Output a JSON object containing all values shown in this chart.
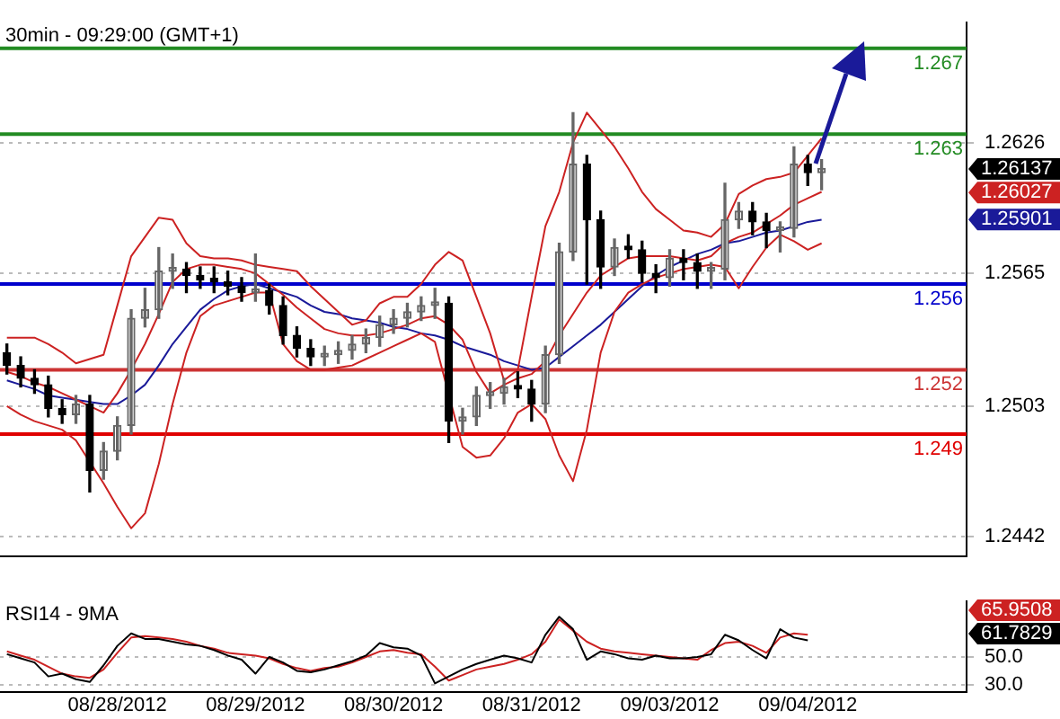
{
  "chart_data": [
    {
      "type": "candlestick",
      "title": "30min - 09:29:00 (GMT+1)",
      "colors": [
        "#000000",
        "#000000",
        "#000000",
        "#000000",
        "#000000",
        "#666666",
        "#000000",
        "#666666",
        "#666666",
        "#666666",
        "#666666",
        "#666666",
        "#666666",
        "#000000",
        "#000000",
        "#000000",
        "#000000",
        "#000000",
        "#666666",
        "#000000",
        "#000000",
        "#000000",
        "#000000",
        "#666666",
        "#666666",
        "#666666",
        "#666666",
        "#666666",
        "#666666",
        "#666666",
        "#666666",
        "#666666",
        "#000000",
        "#666666",
        "#666666",
        "#666666",
        "#666666",
        "#000000",
        "#000000",
        "#666666",
        "#666666",
        "#666666",
        "#000000",
        "#000000",
        "#666666",
        "#000000",
        "#000000",
        "#000000",
        "#666666",
        "#000000",
        "#000000",
        "#666666",
        "#666666",
        "#666666",
        "#000000",
        "#000000",
        "#666666",
        "#666666",
        "#000000",
        "#666666",
        null,
        null,
        null,
        null,
        null,
        null,
        null,
        null,
        null,
        null
      ],
      "legend": false,
      "grid": "y",
      "tick_labels": "y",
      "marker": "none",
      "categories": [
        null,
        null,
        null,
        null,
        null,
        null,
        null,
        null,
        null,
        null,
        null,
        null,
        null,
        null,
        null,
        null,
        null,
        null,
        null,
        null,
        null,
        null,
        null,
        null,
        null,
        null,
        null,
        null,
        null,
        null,
        null,
        null,
        null,
        null,
        null,
        null,
        null,
        null,
        null,
        null,
        null,
        null,
        null,
        null,
        null,
        null,
        null,
        null,
        null,
        null,
        null,
        null,
        null,
        null,
        null,
        null,
        null,
        null,
        null,
        null,
        null,
        null,
        null,
        null,
        null,
        null,
        null,
        null,
        null,
        null
      ],
      "ylim": [
        1.2433,
        1.2682
      ],
      "yticks": [
        1.2442,
        1.2503,
        1.2565,
        1.2626
      ],
      "ohlc": [
        [
          1.2528,
          1.2532,
          1.2518,
          1.2522
        ],
        [
          1.2522,
          1.2526,
          1.2512,
          1.2516
        ],
        [
          1.2516,
          1.252,
          1.2509,
          1.2513
        ],
        [
          1.2513,
          1.2517,
          1.2498,
          1.2502
        ],
        [
          1.2502,
          1.2506,
          1.2495,
          1.2499
        ],
        [
          1.2499,
          1.2508,
          1.2495,
          1.2504
        ],
        [
          1.2504,
          1.2508,
          1.2463,
          1.2473
        ],
        [
          1.2473,
          1.2486,
          1.2469,
          1.2482
        ],
        [
          1.2482,
          1.2498,
          1.2478,
          1.2494
        ],
        [
          1.2494,
          1.2548,
          1.249,
          1.2544
        ],
        [
          1.2544,
          1.2558,
          1.254,
          1.2548
        ],
        [
          1.2548,
          1.2577,
          1.2544,
          1.2566
        ],
        [
          1.2566,
          1.2574,
          1.2558,
          1.2567
        ],
        [
          1.2567,
          1.257,
          1.2556,
          1.2564
        ],
        [
          1.2564,
          1.2568,
          1.2558,
          1.2562
        ],
        [
          1.2562,
          1.2568,
          1.2556,
          1.2561
        ],
        [
          1.2561,
          1.2566,
          1.2555,
          1.2559
        ],
        [
          1.2559,
          1.2563,
          1.2552,
          1.2556
        ],
        [
          1.2556,
          1.2574,
          1.2552,
          1.2557
        ],
        [
          1.2557,
          1.256,
          1.2546,
          1.255
        ],
        [
          1.255,
          1.2554,
          1.2532,
          1.2536
        ],
        [
          1.2536,
          1.254,
          1.2526,
          1.253
        ],
        [
          1.253,
          1.2534,
          1.2522,
          1.2526
        ],
        [
          1.2526,
          1.2531,
          1.2522,
          1.2527
        ],
        [
          1.2527,
          1.2533,
          1.2523,
          1.2529
        ],
        [
          1.2529,
          1.2536,
          1.2525,
          1.2532
        ],
        [
          1.2532,
          1.2539,
          1.2528,
          1.2535
        ],
        [
          1.2535,
          1.2545,
          1.2531,
          1.2541
        ],
        [
          1.2541,
          1.2548,
          1.2537,
          1.2544
        ],
        [
          1.2544,
          1.2551,
          1.254,
          1.2547
        ],
        [
          1.2547,
          1.2554,
          1.2543,
          1.255
        ],
        [
          1.255,
          1.2558,
          1.2544,
          1.2551
        ],
        [
          1.2551,
          1.2554,
          1.2486,
          1.2496
        ],
        [
          1.2496,
          1.2502,
          1.249,
          1.2498
        ],
        [
          1.2498,
          1.2512,
          1.2494,
          1.2508
        ],
        [
          1.2508,
          1.2514,
          1.2502,
          1.2509
        ],
        [
          1.2509,
          1.2516,
          1.2504,
          1.2512
        ],
        [
          1.2512,
          1.2519,
          1.2507,
          1.2511
        ],
        [
          1.2511,
          1.2515,
          1.2496,
          1.2504
        ],
        [
          1.2504,
          1.2531,
          1.25,
          1.2527
        ],
        [
          1.2527,
          1.2579,
          1.2523,
          1.2575
        ],
        [
          1.2575,
          1.264,
          1.2571,
          1.2616
        ],
        [
          1.2616,
          1.262,
          1.256,
          1.259
        ],
        [
          1.259,
          1.2594,
          1.2558,
          1.2568
        ],
        [
          1.2568,
          1.2581,
          1.2564,
          1.2577
        ],
        [
          1.2577,
          1.2583,
          1.2572,
          1.2576
        ],
        [
          1.2576,
          1.258,
          1.2561,
          1.2565
        ],
        [
          1.2565,
          1.2569,
          1.2556,
          1.2563
        ],
        [
          1.2563,
          1.2576,
          1.2559,
          1.2572
        ],
        [
          1.2572,
          1.2576,
          1.2562,
          1.257
        ],
        [
          1.257,
          1.2574,
          1.2558,
          1.2566
        ],
        [
          1.2566,
          1.257,
          1.2558,
          1.2567
        ],
        [
          1.2567,
          1.2607,
          1.2562,
          1.259
        ],
        [
          1.259,
          1.2598,
          1.2586,
          1.2594
        ],
        [
          1.2594,
          1.2598,
          1.2583,
          1.2589
        ],
        [
          1.2589,
          1.2593,
          1.2577,
          1.2585
        ],
        [
          1.2585,
          1.2589,
          1.2575,
          1.2586
        ],
        [
          1.2586,
          1.2624,
          1.2582,
          1.2616
        ],
        [
          1.2616,
          1.262,
          1.2606,
          1.2612
        ],
        [
          1.2612,
          1.2618,
          1.2604,
          1.2614
        ],
        null,
        null,
        null,
        null,
        null,
        null,
        null,
        null,
        null,
        null
      ],
      "series": [
        {
          "type": "line",
          "color": "#cc2222",
          "values": [
            1.2535,
            1.2535,
            1.2535,
            1.2532,
            1.2528,
            1.2523,
            1.2525,
            1.2527,
            1.255,
            1.2573,
            1.2582,
            1.2591,
            1.259,
            1.2579,
            1.2573,
            1.2572,
            1.2572,
            1.2571,
            1.2569,
            1.2568,
            1.2567,
            1.2566,
            1.2559,
            1.2553,
            1.2547,
            1.2541,
            1.2543,
            1.2551,
            1.2554,
            1.2554,
            1.256,
            1.2569,
            1.2575,
            1.2571,
            1.2554,
            1.2537,
            1.2515,
            1.252,
            1.2554,
            1.2587,
            1.2603,
            1.2626,
            1.264,
            1.2632,
            1.2624,
            1.2614,
            1.2603,
            1.2595,
            1.259,
            1.2585,
            1.2584,
            1.2582,
            1.2588,
            1.2602,
            1.2606,
            1.2609,
            1.261,
            1.2612,
            1.262,
            1.2628,
            null,
            null,
            null,
            null,
            null,
            null,
            null,
            null,
            null,
            null
          ]
        },
        {
          "type": "line",
          "color": "#cc2222",
          "values": [
            1.2519,
            1.2517,
            1.2514,
            1.2512,
            1.2509,
            1.2506,
            1.2503,
            1.25,
            1.2509,
            1.252,
            1.2532,
            1.2546,
            1.2561,
            1.2567,
            1.2569,
            1.2569,
            1.2568,
            1.2567,
            1.2565,
            1.256,
            1.2555,
            1.2549,
            1.2544,
            1.2539,
            1.2537,
            1.2536,
            1.2536,
            1.2537,
            1.2539,
            1.2541,
            1.2544,
            1.2545,
            1.2541,
            1.2534,
            1.2519,
            1.2509,
            1.2513,
            1.2516,
            1.2518,
            1.2524,
            1.2536,
            null,
            1.2556,
            1.2564,
            1.2568,
            1.2572,
            1.2573,
            1.2573,
            1.2573,
            1.2572,
            1.2571,
            1.2573,
            1.2579,
            1.2582,
            1.2584,
            1.2588,
            1.2592,
            1.2597,
            1.26,
            1.2603,
            null,
            null,
            null,
            null,
            null,
            null,
            null,
            null,
            null,
            null
          ]
        },
        {
          "type": "line",
          "color": "#cc2222",
          "values": [
            1.2503,
            1.2499,
            1.2496,
            1.2494,
            1.2492,
            1.2487,
            1.2477,
            1.2467,
            1.2456,
            1.2446,
            1.2453,
            1.2476,
            1.2504,
            1.2528,
            1.2545,
            1.255,
            1.2552,
            1.2554,
            1.2556,
            1.2556,
            1.2532,
            1.2524,
            1.252,
            1.252,
            1.2521,
            1.2522,
            1.2525,
            1.2528,
            1.2531,
            1.2534,
            1.2537,
            1.2533,
            null,
            1.2484,
            1.2479,
            1.248,
            1.2488,
            1.25,
            1.2504,
            1.2497,
            1.248,
            1.2468,
            1.2492,
            1.2528,
            1.2547,
            1.2556,
            1.256,
            1.2563,
            1.2565,
            1.2567,
            1.2568,
            1.2569,
            1.2568,
            1.2558,
            1.2568,
            1.2577,
            1.2583,
            1.258,
            1.2576,
            1.2579,
            null,
            null,
            null,
            null,
            null,
            null,
            null,
            null,
            null,
            null
          ]
        },
        {
          "type": "line",
          "color": "#1a1a99",
          "values": [
            1.2515,
            1.2513,
            1.2511,
            1.2508,
            1.2507,
            1.2506,
            1.2505,
            1.2504,
            1.2504,
            1.2508,
            1.2513,
            1.2522,
            1.2532,
            1.254,
            1.2548,
            1.2553,
            1.2557,
            1.2559,
            1.256,
            1.2558,
            1.2556,
            1.2554,
            1.255,
            1.2547,
            1.2546,
            1.2544,
            1.2543,
            1.2542,
            1.254,
            1.2539,
            1.2537,
            1.2536,
            1.2534,
            1.2531,
            1.2529,
            1.2527,
            1.2524,
            1.2522,
            1.252,
            1.2521,
            1.2526,
            1.2531,
            1.2536,
            1.2541,
            1.2547,
            1.2553,
            1.2559,
            1.2564,
            1.2568,
            1.2571,
            1.2574,
            1.2576,
            1.2579,
            1.258,
            1.2582,
            1.2584,
            1.2585,
            1.2587,
            1.2589,
            1.259,
            null,
            null,
            null,
            null,
            null,
            null,
            null,
            null,
            null,
            null
          ]
        }
      ],
      "ref_lines": [
        {
          "axis": "y",
          "value": 1.267,
          "label": "1.267",
          "color": "#228b22"
        },
        {
          "axis": "y",
          "value": 1.263,
          "label": "1.263",
          "color": "#228b22"
        },
        {
          "axis": "y",
          "value": 1.256,
          "label": "1.256",
          "color": "#0000cc"
        },
        {
          "axis": "y",
          "value": 1.252,
          "label": "1.252",
          "color": "#cc3333"
        },
        {
          "axis": "y",
          "value": 1.249,
          "label": "1.249",
          "color": "#e00000"
        }
      ],
      "annotations": [
        "1.26137",
        "1.26027",
        "1.25901"
      ]
    },
    {
      "type": "line",
      "title": "RSI14 - 9MA",
      "legend": false,
      "grid": "y",
      "marker": "none",
      "categories": [
        null,
        null,
        null,
        null,
        null,
        null,
        null,
        null,
        "08/28/2012",
        null,
        null,
        null,
        null,
        null,
        null,
        null,
        null,
        null,
        "08/29/2012",
        null,
        null,
        null,
        null,
        null,
        null,
        null,
        null,
        null,
        "08/30/2012",
        null,
        null,
        null,
        null,
        null,
        null,
        null,
        null,
        null,
        "08/31/2012",
        null,
        null,
        null,
        null,
        null,
        null,
        null,
        null,
        null,
        "09/03/2012",
        null,
        null,
        null,
        null,
        null,
        null,
        null,
        null,
        null,
        "09/04/2012",
        null,
        null,
        null,
        null,
        null,
        null,
        null,
        null,
        null,
        null,
        null
      ],
      "ylim": [
        25,
        90
      ],
      "yticks": [
        {
          "value": 30,
          "label": "30.0"
        },
        {
          "value": 50,
          "label": "50.0"
        }
      ],
      "series": [
        {
          "color": "#000000",
          "values": [
            52,
            49,
            46,
            36,
            38,
            34,
            32,
            44,
            58,
            67,
            63,
            63,
            61,
            59,
            58,
            55,
            51,
            48,
            38,
            50,
            46,
            40,
            39,
            41,
            44,
            47,
            51,
            60,
            57,
            56,
            51,
            31,
            36,
            41,
            45,
            48,
            51,
            49,
            46,
            66,
            79,
            70,
            48,
            54,
            52,
            49,
            48,
            51,
            49,
            49,
            50,
            52,
            66,
            62,
            55,
            49,
            70,
            64,
            62,
            null,
            null,
            null,
            null,
            null,
            null,
            null,
            null,
            null,
            null,
            null
          ]
        },
        {
          "color": "#cc2222",
          "values": [
            54,
            51,
            48,
            43,
            38,
            36,
            35,
            41,
            53,
            64,
            65,
            64,
            63,
            61,
            58,
            56,
            53,
            52,
            51,
            49,
            45,
            42,
            40,
            42,
            43,
            46,
            50,
            54,
            55,
            53,
            52,
            43,
            33,
            37,
            41,
            43,
            45,
            48,
            52,
            61,
            77,
            69,
            61,
            56,
            54,
            53,
            52,
            51,
            50,
            49,
            48,
            55,
            60,
            61,
            58,
            53,
            64,
            67,
            66,
            null,
            null,
            null,
            null,
            null,
            null,
            null,
            null,
            null,
            null,
            null
          ]
        }
      ],
      "annotations": [
        "65.9508",
        "61.7829"
      ]
    }
  ]
}
